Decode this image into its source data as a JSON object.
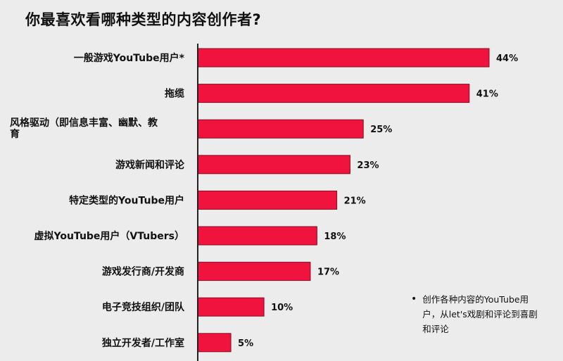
{
  "chart_data": {
    "type": "bar",
    "orientation": "horizontal",
    "title": "你最喜欢看哪种类型的内容创作者?",
    "categories": [
      "一般游戏YouTube用户*",
      "拖缆",
      "风格驱动（即信息丰富、幽默、教育",
      "游戏新闻和评论",
      "特定类型的YouTube用户",
      "虚拟YouTube用户（VTubers）",
      "游戏发行商/开发商",
      "电子竞技组织/团队",
      "独立开发者/工作室"
    ],
    "values": [
      44,
      41,
      25,
      23,
      21,
      18,
      17,
      10,
      5
    ],
    "value_labels": [
      "44%",
      "41%",
      "25%",
      "23%",
      "21%",
      "18%",
      "17%",
      "10%",
      "5%"
    ],
    "unit": "%",
    "xlim": [
      0,
      44
    ],
    "bar_color": "#f0133d",
    "axis_color": "#222222",
    "grid": false,
    "legend": "none",
    "note": "创作各种内容的YouTube用户，从let's戏剧和评论到喜剧和评论"
  }
}
